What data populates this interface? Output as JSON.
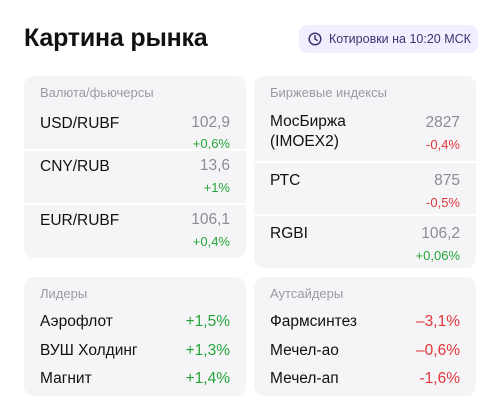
{
  "header": {
    "title": "Картина рынка",
    "quote_time": "Котировки на 10:20 МСК"
  },
  "currency_panel": {
    "title": "Валюта/фьючерсы",
    "rows": [
      {
        "name": "USD/RUBF",
        "value": "102,9",
        "change": "+0,6%"
      },
      {
        "name": "CNY/RUB",
        "value": "13,6",
        "change": "+1%"
      },
      {
        "name": "EUR/RUBF",
        "value": "106,1",
        "change": "+0,4%"
      }
    ]
  },
  "index_panel": {
    "title": "Биржевые индексы",
    "rows": [
      {
        "name": "МосБиржа\n(IMOEX2)",
        "value": "2827",
        "change": "-0,4%"
      },
      {
        "name": "РТС",
        "value": "875",
        "change": "-0,5%"
      },
      {
        "name": "RGBI",
        "value": "106,2",
        "change": "+0,06%"
      }
    ]
  },
  "leaders_panel": {
    "title": "Лидеры",
    "rows": [
      {
        "name": "Аэрофлот",
        "change": "+1,5%"
      },
      {
        "name": "ВУШ Холдинг",
        "change": "+1,3%"
      },
      {
        "name": "Магнит",
        "change": "+1,4%"
      }
    ]
  },
  "outsiders_panel": {
    "title": "Аутсайдеры",
    "rows": [
      {
        "name": "Фармсинтез",
        "change": "–3,1%"
      },
      {
        "name": "Мечел-ао",
        "change": "–0,6%"
      },
      {
        "name": "Мечел-ап",
        "change": "-1,6%"
      }
    ]
  },
  "colors": {
    "positive": "#23a537",
    "negative": "#e0363c",
    "panel_bg": "#f5f5f7",
    "badge_bg": "#f1efff"
  }
}
